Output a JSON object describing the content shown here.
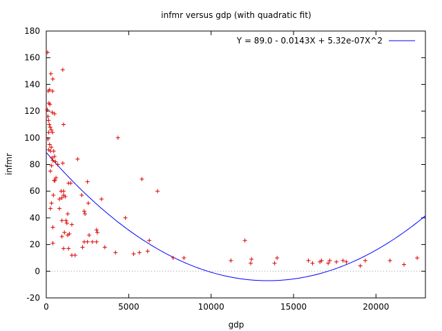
{
  "chart_data": {
    "type": "scatter",
    "title": "infmr versus gdp (with quadratic fit)",
    "xlabel": "gdp",
    "ylabel": "infmr",
    "xlim": [
      0,
      23000
    ],
    "ylim": [
      -20,
      180
    ],
    "xticks": [
      0,
      5000,
      10000,
      15000,
      20000
    ],
    "yticks": [
      -20,
      0,
      20,
      40,
      60,
      80,
      100,
      120,
      140,
      160,
      180
    ],
    "grid": false,
    "zero_line": true,
    "legend_position": "top-right",
    "colors": {
      "points": "#dd0000",
      "fit": "#0000ff",
      "zero_line": "#999999"
    },
    "series": [
      {
        "marker": "plus",
        "points": [
          [
            80,
            164
          ],
          [
            120,
            135
          ],
          [
            200,
            136
          ],
          [
            380,
            135
          ],
          [
            280,
            148
          ],
          [
            400,
            144
          ],
          [
            1000,
            151
          ],
          [
            160,
            126
          ],
          [
            220,
            125
          ],
          [
            60,
            121
          ],
          [
            360,
            119
          ],
          [
            500,
            118
          ],
          [
            100,
            116
          ],
          [
            140,
            113
          ],
          [
            180,
            110
          ],
          [
            240,
            108
          ],
          [
            300,
            106
          ],
          [
            380,
            104
          ],
          [
            150,
            104
          ],
          [
            1050,
            110
          ],
          [
            100,
            99
          ],
          [
            200,
            95
          ],
          [
            300,
            93
          ],
          [
            150,
            91
          ],
          [
            260,
            90
          ],
          [
            450,
            90
          ],
          [
            340,
            85
          ],
          [
            400,
            83
          ],
          [
            500,
            86
          ],
          [
            560,
            82
          ],
          [
            700,
            80
          ],
          [
            1000,
            81
          ],
          [
            250,
            75
          ],
          [
            320,
            79
          ],
          [
            470,
            68
          ],
          [
            530,
            68
          ],
          [
            590,
            70
          ],
          [
            900,
            60
          ],
          [
            1050,
            60
          ],
          [
            1350,
            66
          ],
          [
            1480,
            66
          ],
          [
            430,
            57
          ],
          [
            800,
            54
          ],
          [
            950,
            55
          ],
          [
            1050,
            57
          ],
          [
            1150,
            56
          ],
          [
            800,
            47
          ],
          [
            250,
            47
          ],
          [
            320,
            51
          ],
          [
            1300,
            43
          ],
          [
            950,
            38
          ],
          [
            1200,
            38
          ],
          [
            1250,
            36
          ],
          [
            1550,
            35
          ],
          [
            400,
            33
          ],
          [
            1100,
            29
          ],
          [
            950,
            26
          ],
          [
            1300,
            27
          ],
          [
            1400,
            28
          ],
          [
            1050,
            17
          ],
          [
            1350,
            17
          ],
          [
            1550,
            12
          ],
          [
            1750,
            12
          ],
          [
            400,
            21
          ],
          [
            1900,
            84
          ],
          [
            2150,
            57
          ],
          [
            2300,
            45
          ],
          [
            2350,
            43
          ],
          [
            2500,
            67
          ],
          [
            2550,
            51
          ],
          [
            2200,
            18
          ],
          [
            2300,
            22
          ],
          [
            2500,
            22
          ],
          [
            2600,
            27
          ],
          [
            2800,
            22
          ],
          [
            3050,
            31
          ],
          [
            3100,
            29
          ],
          [
            3050,
            22
          ],
          [
            3350,
            54
          ],
          [
            3550,
            18
          ],
          [
            4200,
            14
          ],
          [
            4350,
            100
          ],
          [
            4800,
            40
          ],
          [
            5300,
            13
          ],
          [
            5650,
            14
          ],
          [
            5800,
            69
          ],
          [
            6150,
            15
          ],
          [
            6250,
            23
          ],
          [
            6750,
            60
          ],
          [
            7700,
            10
          ],
          [
            8350,
            10
          ],
          [
            11200,
            8
          ],
          [
            12050,
            23
          ],
          [
            12400,
            6
          ],
          [
            12450,
            9
          ],
          [
            13850,
            6
          ],
          [
            14000,
            10
          ],
          [
            15900,
            8
          ],
          [
            16150,
            6
          ],
          [
            16600,
            7
          ],
          [
            16700,
            8
          ],
          [
            17100,
            6
          ],
          [
            17200,
            8
          ],
          [
            17600,
            7
          ],
          [
            18000,
            8
          ],
          [
            18200,
            7
          ],
          [
            19050,
            4
          ],
          [
            19350,
            8
          ],
          [
            20850,
            8
          ],
          [
            21700,
            5
          ],
          [
            22500,
            10
          ]
        ]
      },
      {
        "name": "Y = 89.0 - 0.0143X + 5.32e-07X^2",
        "type": "line",
        "coefficients": {
          "a": 89.0,
          "b": -0.0143,
          "c": 5.32e-07
        }
      }
    ]
  }
}
